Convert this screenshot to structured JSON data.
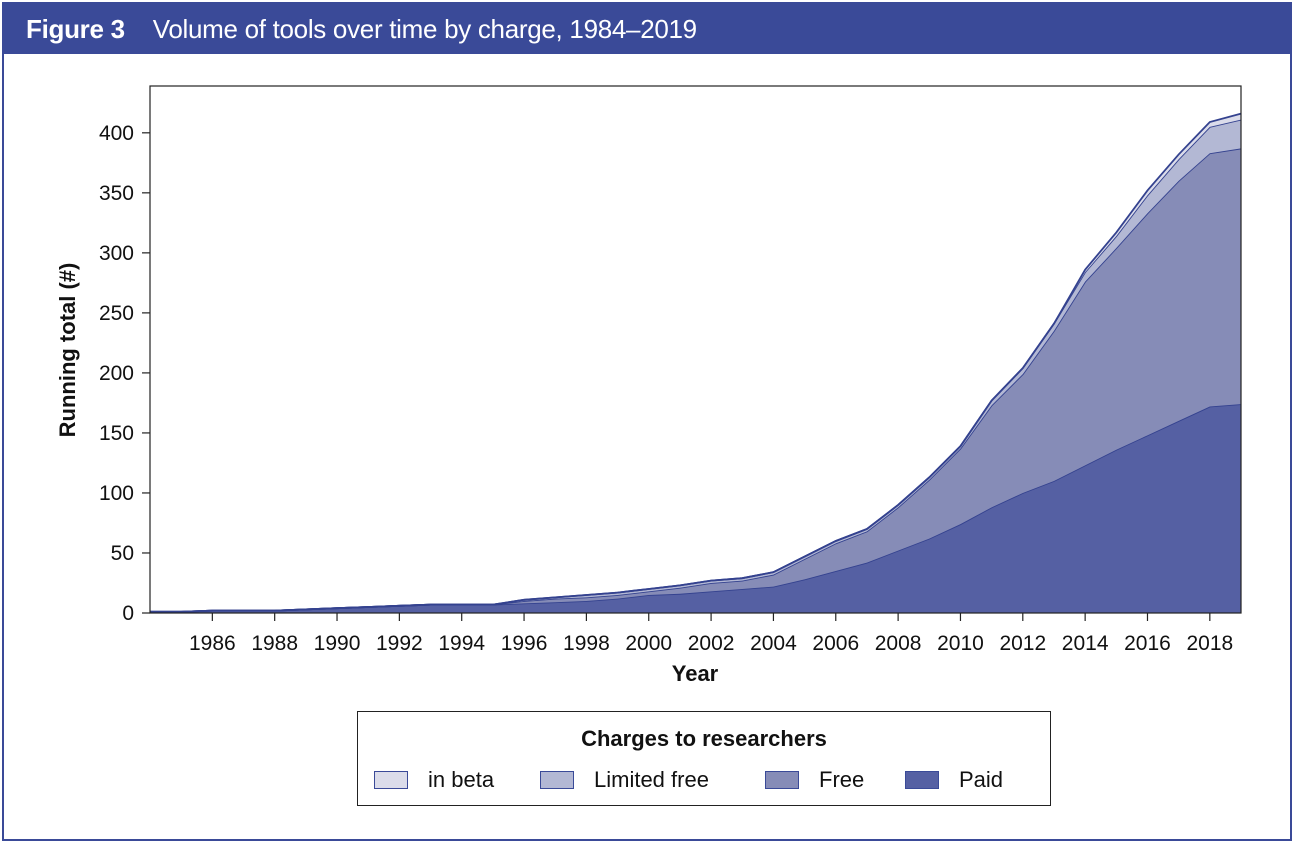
{
  "header": {
    "figure_label": "Figure 3",
    "title": "Volume of tools over time by charge, 1984–2019"
  },
  "chart_data": {
    "type": "area",
    "stacked": true,
    "title": "Volume of tools over time by charge, 1984–2019",
    "xlabel": "Year",
    "ylabel": "Running total (#)",
    "ylim": [
      0,
      400
    ],
    "yticks": [
      0,
      50,
      100,
      150,
      200,
      250,
      300,
      350,
      400
    ],
    "xticks": [
      1986,
      1988,
      1990,
      1992,
      1994,
      1996,
      1998,
      2000,
      2002,
      2004,
      2006,
      2008,
      2010,
      2012,
      2014,
      2016,
      2018
    ],
    "x": [
      1984,
      1985,
      1986,
      1987,
      1988,
      1989,
      1990,
      1991,
      1992,
      1993,
      1994,
      1995,
      1996,
      1997,
      1998,
      1999,
      2000,
      2001,
      2002,
      2003,
      2004,
      2005,
      2006,
      2007,
      2008,
      2009,
      2010,
      2011,
      2012,
      2013,
      2014,
      2015,
      2016,
      2017,
      2018,
      2019
    ],
    "series": [
      {
        "name": "Paid",
        "color": "#5560a3",
        "values": [
          1,
          1,
          2,
          2,
          2,
          3,
          4,
          5,
          6,
          7,
          7,
          7,
          8,
          9,
          10,
          12,
          15,
          16,
          18,
          20,
          22,
          28,
          35,
          42,
          52,
          62,
          74,
          88,
          100,
          110,
          123,
          136,
          148,
          160,
          172,
          174
        ]
      },
      {
        "name": "Free",
        "color": "#868cb7",
        "values": [
          0,
          0,
          0,
          0,
          0,
          0,
          0,
          0,
          0,
          0,
          0,
          0,
          2,
          3,
          3,
          3,
          3,
          5,
          7,
          7,
          10,
          17,
          23,
          26,
          36,
          49,
          63,
          85,
          99,
          125,
          153,
          168,
          185,
          200,
          211,
          213
        ]
      },
      {
        "name": "Limited free",
        "color": "#b3b8d4",
        "values": [
          0,
          0,
          0,
          0,
          0,
          0,
          0,
          0,
          0,
          0,
          0,
          0,
          1,
          1,
          2,
          2,
          2,
          2,
          2,
          2,
          2,
          2,
          2,
          2,
          2,
          2,
          2,
          4,
          5,
          6,
          8,
          10,
          15,
          18,
          22,
          24
        ]
      },
      {
        "name": "in beta",
        "color": "#dbdcea",
        "values": [
          0,
          0,
          0,
          0,
          0,
          0,
          0,
          0,
          0,
          0,
          0,
          0,
          0,
          0,
          0,
          0,
          0,
          0,
          0,
          0,
          0,
          0,
          0,
          0,
          0,
          0,
          0,
          0,
          0,
          0,
          2,
          3,
          4,
          4,
          4,
          5
        ]
      }
    ]
  },
  "legend": {
    "title": "Charges to researchers",
    "items": [
      {
        "label": "in beta",
        "color": "#dbdcea"
      },
      {
        "label": "Limited free",
        "color": "#b3b8d4"
      },
      {
        "label": "Free",
        "color": "#868cb7"
      },
      {
        "label": "Paid",
        "color": "#5560a3"
      }
    ]
  }
}
